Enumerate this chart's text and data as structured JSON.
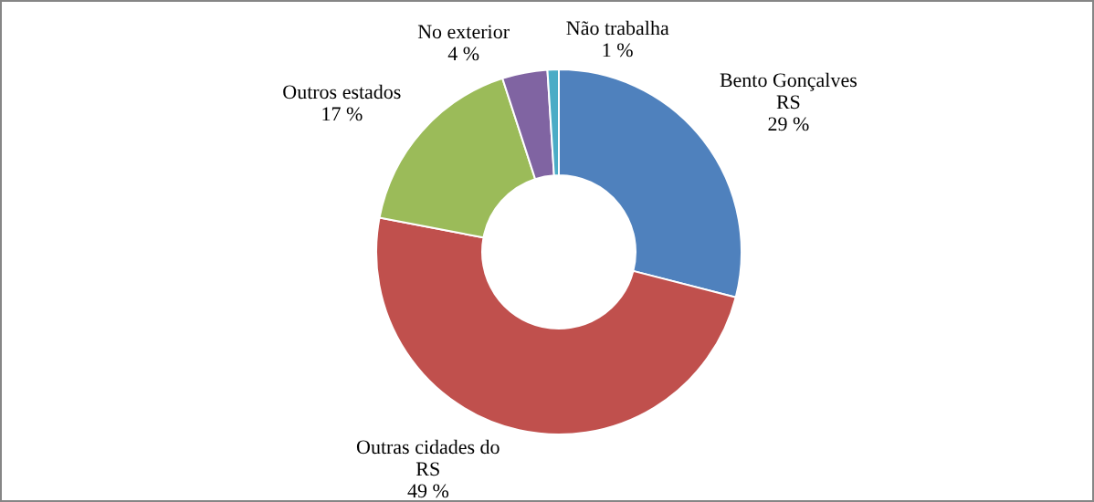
{
  "chart_data": {
    "type": "donut",
    "categories": [
      "Bento Gonçalves RS",
      "Outras cidades do RS",
      "Outros estados",
      "No exterior",
      "Não trabalha"
    ],
    "values": [
      29,
      49,
      17,
      4,
      1
    ],
    "colors": [
      "#4f81bd",
      "#c0504d",
      "#9bbb59",
      "#8064a2",
      "#4bacc6"
    ],
    "value_labels": [
      "29 %",
      "49 %",
      "17 %",
      "4 %",
      "1 %"
    ],
    "legend": false
  }
}
